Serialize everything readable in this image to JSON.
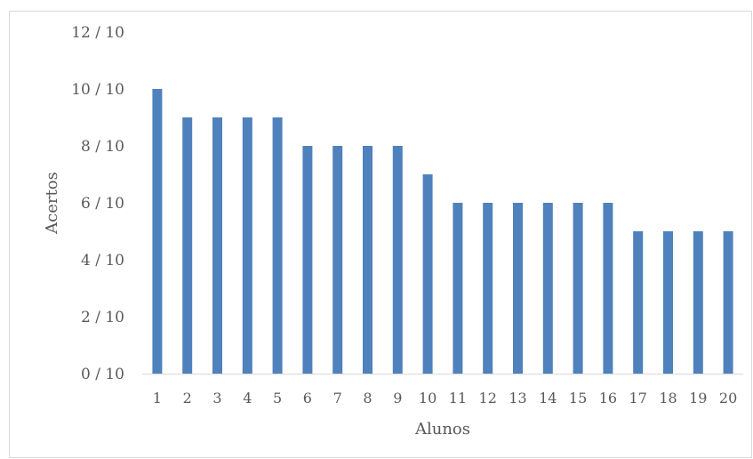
{
  "chart_data": {
    "type": "bar",
    "title": "",
    "xlabel": "Alunos",
    "ylabel": "Acertos",
    "categories": [
      "1",
      "2",
      "3",
      "4",
      "5",
      "6",
      "7",
      "8",
      "9",
      "10",
      "11",
      "12",
      "13",
      "14",
      "15",
      "16",
      "17",
      "18",
      "19",
      "20"
    ],
    "values": [
      10,
      9,
      9,
      9,
      9,
      8,
      8,
      8,
      8,
      7,
      6,
      6,
      6,
      6,
      6,
      6,
      5,
      5,
      5,
      5
    ],
    "ylim": [
      0,
      12
    ],
    "y_tick_labels": [
      "0 / 10",
      "2 / 10",
      "4 / 10",
      "6 / 10",
      "8 / 10",
      "10 / 10",
      "12 / 10"
    ],
    "y_tick_values": [
      0,
      2,
      4,
      6,
      8,
      10,
      12
    ],
    "grid": false,
    "legend": "none",
    "bar_color": "#4f81bd",
    "axis_line_color": "#d9d9d9"
  }
}
